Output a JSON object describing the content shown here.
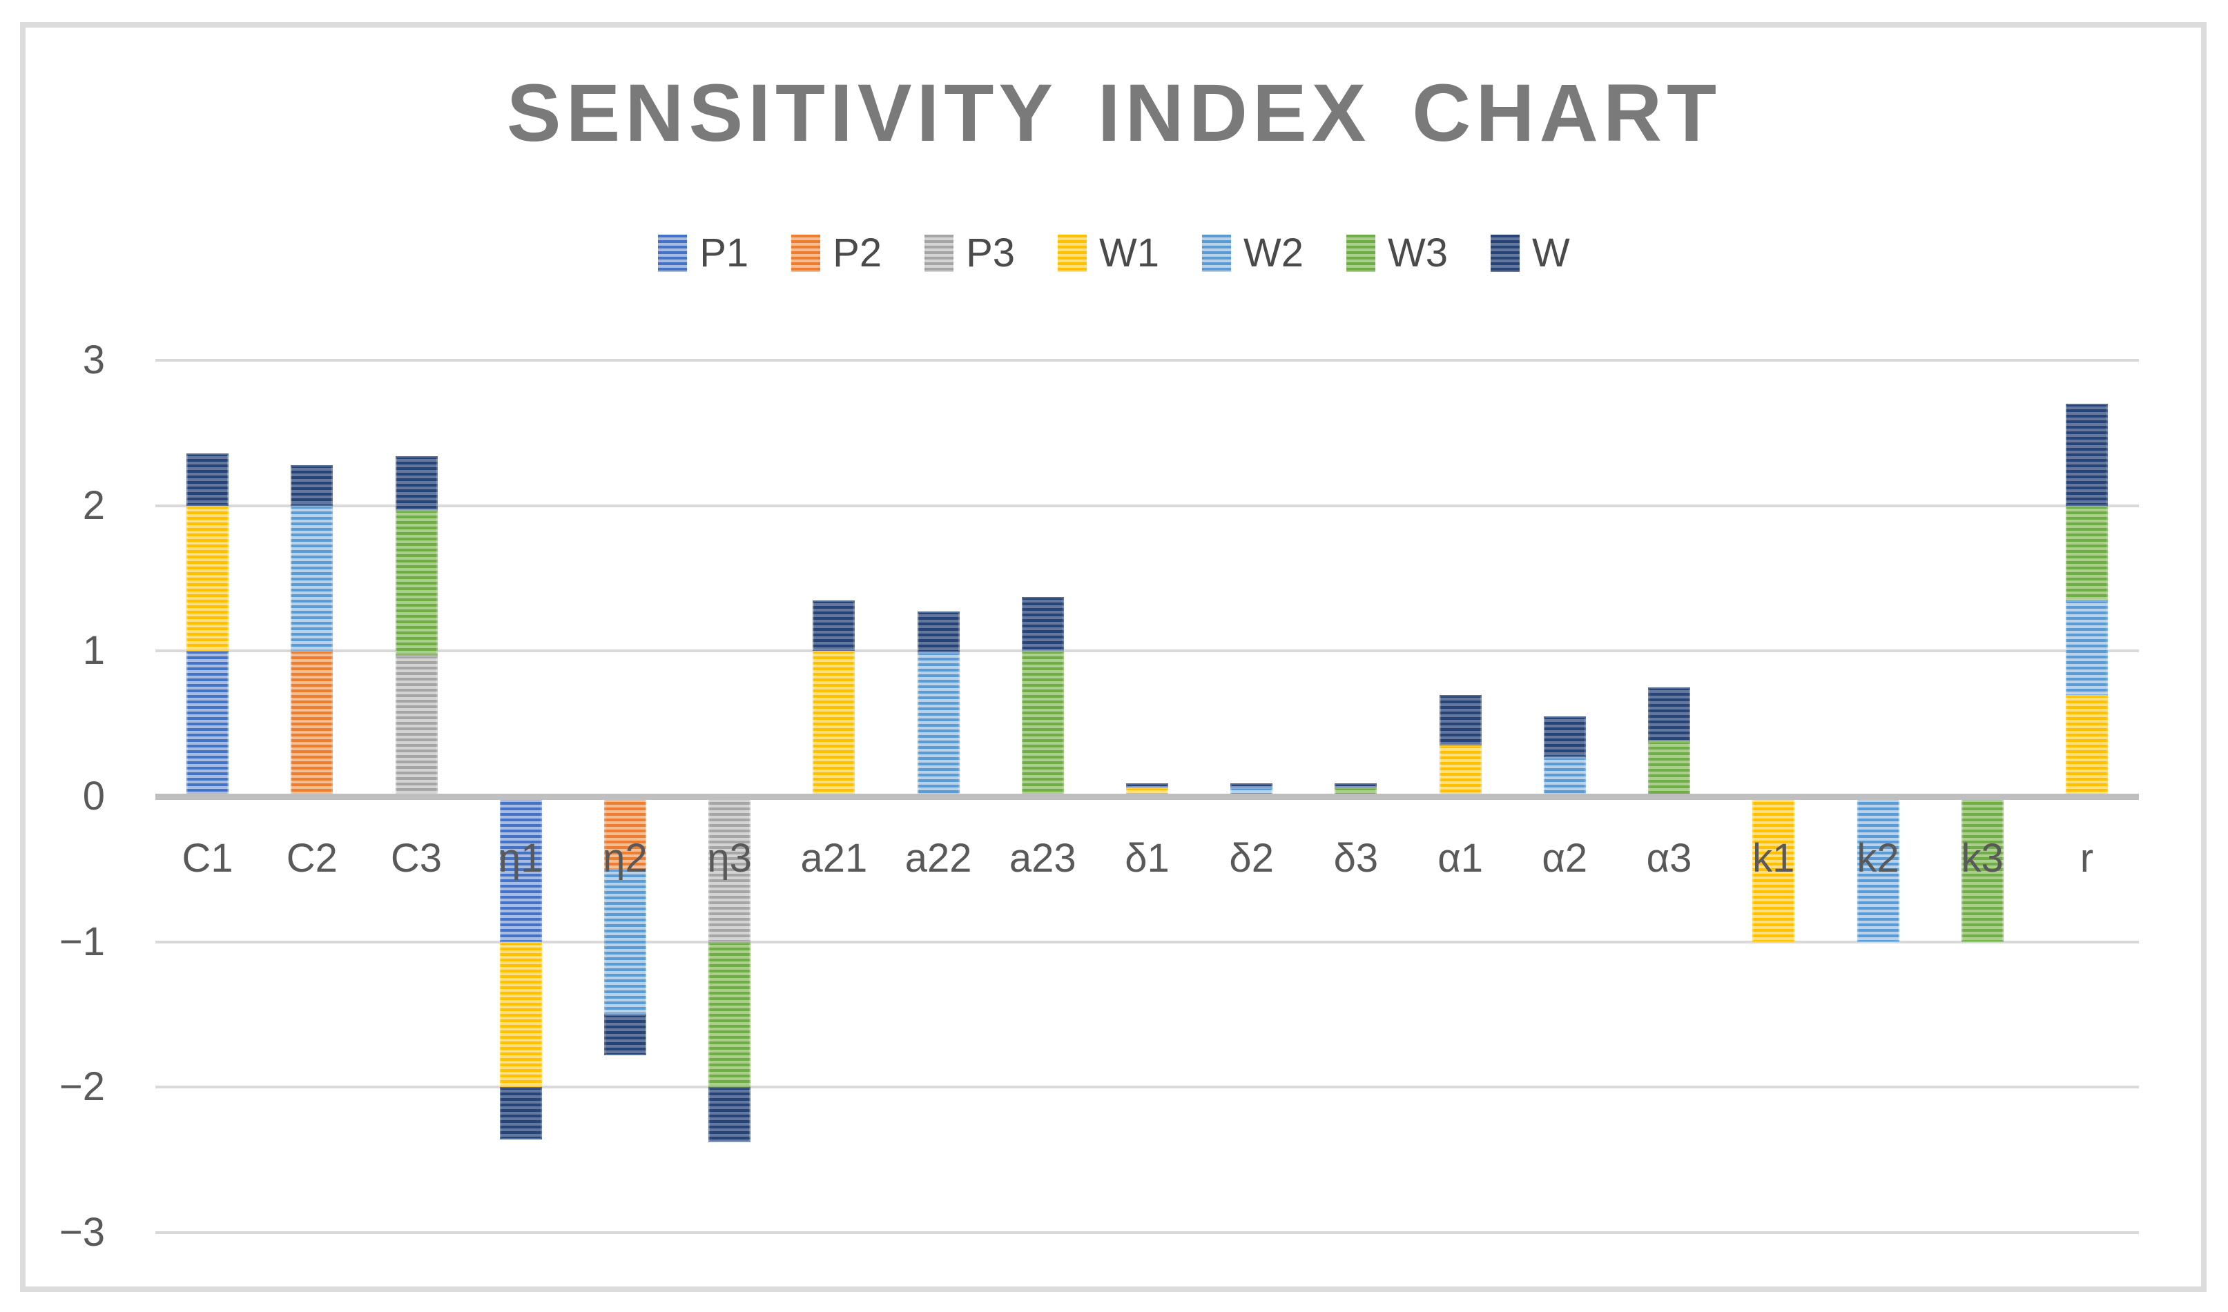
{
  "chart_data": {
    "type": "bar",
    "stacked": true,
    "title": "SENSITIVITY INDEX CHART",
    "xlabel": "",
    "ylabel": "",
    "ylim": [
      -3,
      3
    ],
    "grid": true,
    "legend_position": "top",
    "yticks": [
      {
        "label": "3",
        "value": 3
      },
      {
        "label": "2",
        "value": 2
      },
      {
        "label": "1",
        "value": 1
      },
      {
        "label": "0",
        "value": 0
      },
      {
        "label": "−1",
        "value": -1
      },
      {
        "label": "−2",
        "value": -2
      },
      {
        "label": "−3",
        "value": -3
      }
    ],
    "series_order": [
      "P1",
      "P2",
      "P3",
      "W1",
      "W2",
      "W3",
      "W"
    ],
    "palette": {
      "P1": {
        "base": "#4472c4",
        "light": "#a8bbe0"
      },
      "P2": {
        "base": "#ed7d31",
        "light": "#f7bd92"
      },
      "P3": {
        "base": "#a5a5a5",
        "light": "#d4d4d4"
      },
      "W1": {
        "base": "#ffc000",
        "light": "#ffdf7e"
      },
      "W2": {
        "base": "#5b9bd5",
        "light": "#b8d2ea"
      },
      "W3": {
        "base": "#70ad47",
        "light": "#abd08e"
      },
      "W": {
        "base": "#264478",
        "light": "#64779f"
      }
    },
    "categories": [
      "C1",
      "C2",
      "C3",
      "η1",
      "η2",
      "η3",
      "a21",
      "a22",
      "a23",
      "δ1",
      "δ2",
      "δ3",
      "α1",
      "α2",
      "α3",
      "k1",
      "k2",
      "k3",
      "r"
    ],
    "stacks": {
      "C1": [
        [
          "P1",
          1.0
        ],
        [
          "W1",
          1.0
        ],
        [
          "W",
          0.36
        ]
      ],
      "C2": [
        [
          "P2",
          1.0
        ],
        [
          "W2",
          1.0
        ],
        [
          "W",
          0.28
        ]
      ],
      "C3": [
        [
          "P3",
          0.97
        ],
        [
          "W3",
          1.0
        ],
        [
          "W",
          0.37
        ]
      ],
      "η1": [
        [
          "P1",
          -1.0
        ],
        [
          "W1",
          -1.0
        ],
        [
          "W",
          -0.36
        ]
      ],
      "η2": [
        [
          "P2",
          -0.5
        ],
        [
          "W2",
          -1.0
        ],
        [
          "W",
          -0.28
        ]
      ],
      "η3": [
        [
          "P3",
          -1.0
        ],
        [
          "W3",
          -1.0
        ],
        [
          "W",
          -0.38
        ]
      ],
      "a21": [
        [
          "W1",
          1.0
        ],
        [
          "W",
          0.35
        ]
      ],
      "a22": [
        [
          "W2",
          0.99
        ],
        [
          "W",
          0.28
        ]
      ],
      "a23": [
        [
          "W3",
          1.0
        ],
        [
          "W",
          0.37
        ]
      ],
      "δ1": [
        [
          "W1",
          0.06
        ],
        [
          "W",
          0.03
        ]
      ],
      "δ2": [
        [
          "W2",
          0.06
        ],
        [
          "W",
          0.03
        ]
      ],
      "δ3": [
        [
          "W3",
          0.06
        ],
        [
          "W",
          0.03
        ]
      ],
      "α1": [
        [
          "W1",
          0.35
        ],
        [
          "W",
          0.35
        ]
      ],
      "α2": [
        [
          "W2",
          0.27
        ],
        [
          "W",
          0.28
        ]
      ],
      "α3": [
        [
          "W3",
          0.38
        ],
        [
          "W",
          0.37
        ]
      ],
      "k1": [
        [
          "W1",
          -1.0
        ]
      ],
      "k2": [
        [
          "W2",
          -1.0
        ]
      ],
      "k3": [
        [
          "W3",
          -1.0
        ]
      ],
      "r": [
        [
          "W1",
          0.7
        ],
        [
          "W2",
          0.65
        ],
        [
          "W3",
          0.65
        ],
        [
          "W",
          0.7
        ]
      ]
    },
    "colors_misc": {
      "title_text": "#7a7a7a",
      "axis_text": "#595959",
      "legend_text": "#4a4a4a",
      "gridline": "#d9d9d9",
      "zero_axis_line": "#bfbfbf",
      "frame_border": "#dcdcdc"
    }
  }
}
